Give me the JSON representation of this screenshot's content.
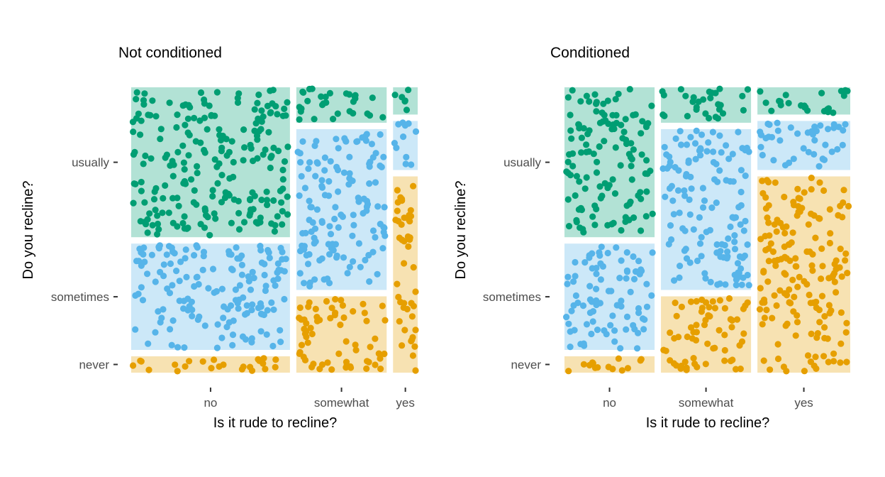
{
  "colors": {
    "never": "#E69F00",
    "sometimes": "#56B4E9",
    "usually": "#009E73",
    "fill_opacity": 0.3
  },
  "chart_data": [
    {
      "type": "mosaic",
      "title": "Not conditioned",
      "xlabel": "Is it rude to recline?",
      "ylabel": "Do you recline?",
      "x_categories": [
        "no",
        "somewhat",
        "yes"
      ],
      "y_categories": [
        "never",
        "sometimes",
        "usually"
      ],
      "x_proportions": [
        0.58,
        0.33,
        0.09
      ],
      "y_proportions_within_x": {
        "no": {
          "never": 0.06,
          "sometimes": 0.39,
          "usually": 0.55
        },
        "somewhat": {
          "never": 0.28,
          "sometimes": 0.59,
          "usually": 0.13
        },
        "yes": {
          "never": 0.72,
          "sometimes": 0.18,
          "usually": 0.1
        }
      },
      "grid": false,
      "legend": "none"
    },
    {
      "type": "mosaic",
      "title": "Conditioned",
      "xlabel": "Is it rude to recline?",
      "ylabel": "Do you recline?",
      "x_categories": [
        "no",
        "somewhat",
        "yes"
      ],
      "y_categories": [
        "never",
        "sometimes",
        "usually"
      ],
      "x_proportions": [
        0.33,
        0.33,
        0.34
      ],
      "y_proportions_within_x": {
        "no": {
          "never": 0.06,
          "sometimes": 0.39,
          "usually": 0.55
        },
        "somewhat": {
          "never": 0.28,
          "sometimes": 0.59,
          "usually": 0.13
        },
        "yes": {
          "never": 0.72,
          "sometimes": 0.18,
          "usually": 0.1
        }
      },
      "grid": false,
      "legend": "none"
    }
  ]
}
